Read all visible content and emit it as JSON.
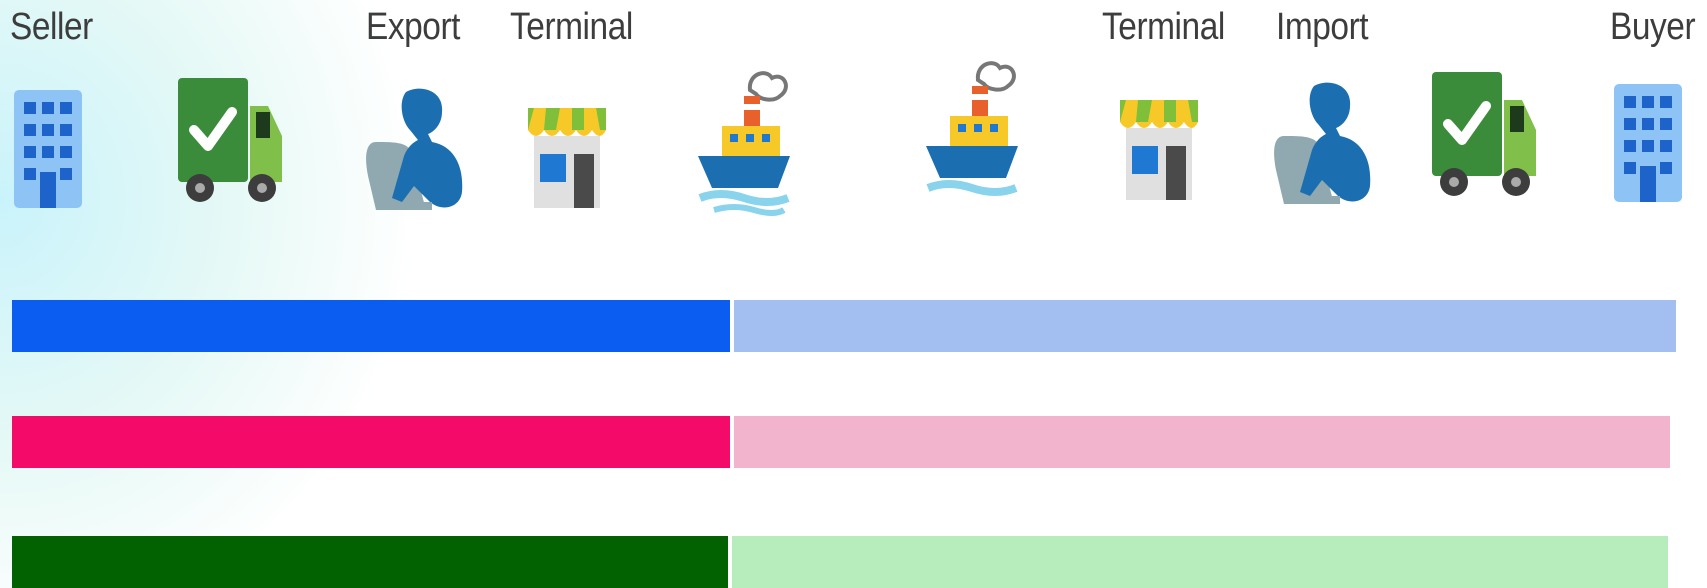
{
  "labels": {
    "seller": "Seller",
    "export": "Export",
    "terminal_origin": "Terminal",
    "terminal_destination": "Terminal",
    "import": "Import",
    "buyer": "Buyer"
  },
  "icons": [
    "building-icon",
    "truck-icon",
    "customs-officer-icon",
    "terminal-store-icon",
    "ship-icon",
    "ship-icon",
    "terminal-store-icon",
    "customs-officer-icon",
    "truck-icon",
    "building-icon"
  ],
  "bars": [
    {
      "name": "blue-bar",
      "solid_color": "#0b5cf0",
      "light_color": "#a3bff2"
    },
    {
      "name": "pink-bar",
      "solid_color": "#f40b6a",
      "light_color": "#f2b4cd"
    },
    {
      "name": "green-bar",
      "solid_color": "#026100",
      "light_color": "#b7ecbc"
    }
  ]
}
